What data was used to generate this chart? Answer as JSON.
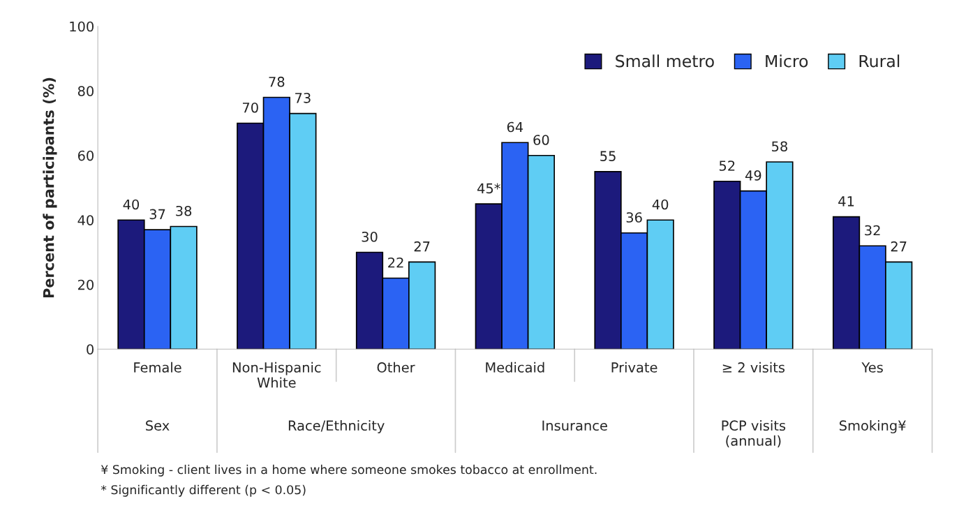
{
  "chart_data": {
    "type": "bar",
    "ylabel": "Percent of participants (%)",
    "categories": [
      "Female",
      "Non-Hispanic\nWhite",
      "Other",
      "Medicaid",
      "Private",
      "≥ 2 visits",
      "Yes"
    ],
    "series": [
      {
        "name": "Small metro",
        "color": "#1c1a7c",
        "values": [
          40,
          70,
          30,
          45,
          55,
          52,
          41
        ],
        "value_labels": [
          "40",
          "70",
          "30",
          "45*",
          "55",
          "52",
          "41"
        ]
      },
      {
        "name": "Micro",
        "color": "#2b63f3",
        "values": [
          37,
          78,
          22,
          64,
          36,
          49,
          32
        ],
        "value_labels": [
          "37",
          "78",
          "22",
          "64",
          "36",
          "49",
          "32"
        ]
      },
      {
        "name": "Rural",
        "color": "#5fcdf4",
        "values": [
          38,
          73,
          27,
          60,
          40,
          58,
          27
        ],
        "value_labels": [
          "38",
          "73",
          "27",
          "60",
          "40",
          "58",
          "27"
        ]
      }
    ],
    "ylim": [
      0,
      100
    ],
    "yticks": [
      0,
      20,
      40,
      60,
      80,
      100
    ],
    "legend": "top right",
    "grid": false,
    "annotations": [
      "Sex",
      "Race/Ethnicity",
      "Insurance",
      "PCP visits\n(annual)",
      "Smoking¥",
      "¥ Smoking - client lives in a home where someone smokes tobacco at enrollment.",
      "* Significantly different (p < 0.05)"
    ]
  }
}
